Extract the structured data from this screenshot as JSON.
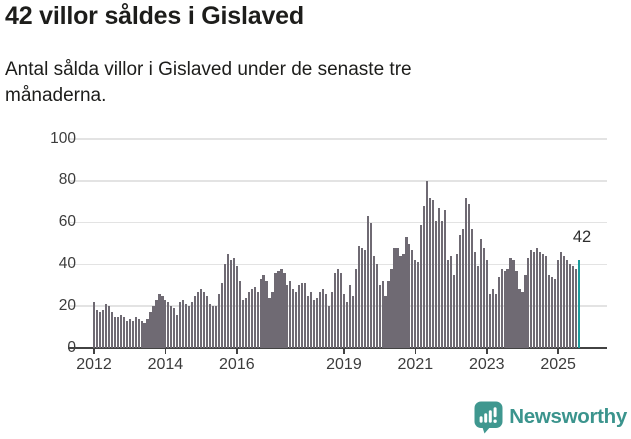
{
  "header": {
    "title": "42 villor såldes i Gislaved",
    "subtitle": "Antal sålda villor i Gislaved under de senaste tre månaderna."
  },
  "chart_data": {
    "type": "bar",
    "title": "42 villor såldes i Gislaved",
    "subtitle": "Antal sålda villor i Gislaved under de senaste tre månaderna.",
    "unit": "villor",
    "x_start_month": "2012-01",
    "x_end_month": "2025-08",
    "values": [
      22,
      18,
      17,
      18,
      21,
      20,
      17,
      15,
      15,
      16,
      15,
      13,
      14,
      13,
      15,
      14,
      13,
      12,
      14,
      17,
      20,
      23,
      26,
      25,
      23,
      22,
      20,
      19,
      16,
      22,
      23,
      21,
      20,
      22,
      25,
      27,
      28,
      27,
      25,
      21,
      20,
      20,
      26,
      31,
      40,
      45,
      42,
      43,
      39,
      32,
      23,
      24,
      27,
      28,
      29,
      27,
      33,
      35,
      32,
      24,
      27,
      36,
      37,
      38,
      36,
      30,
      32,
      28,
      27,
      30,
      31,
      31,
      25,
      27,
      23,
      24,
      27,
      28,
      26,
      20,
      27,
      36,
      38,
      36,
      26,
      22,
      30,
      25,
      38,
      49,
      48,
      47,
      63,
      60,
      44,
      40,
      30,
      32,
      25,
      32,
      38,
      48,
      48,
      44,
      45,
      53,
      50,
      47,
      42,
      41,
      59,
      68,
      80,
      72,
      71,
      61,
      67,
      61,
      66,
      42,
      44,
      35,
      45,
      54,
      57,
      72,
      69,
      57,
      46,
      39,
      52,
      48,
      42,
      26,
      28,
      26,
      34,
      38,
      37,
      38,
      43,
      42,
      37,
      28,
      27,
      35,
      43,
      47,
      46,
      48,
      46,
      45,
      44,
      35,
      34,
      33,
      42,
      46,
      44,
      42,
      40,
      39,
      38,
      42
    ],
    "highlight": {
      "index": 163,
      "value": 42,
      "label": "42"
    },
    "annotation": {
      "text": "42"
    },
    "bar_color": "#6f6a73",
    "highlight_color": "#1a9b9c",
    "ylim": [
      0,
      100
    ],
    "yticks": [
      0,
      20,
      40,
      60,
      80,
      100
    ],
    "xticks": [
      {
        "label": "2012",
        "month_index": 0
      },
      {
        "label": "2014",
        "month_index": 24
      },
      {
        "label": "2016",
        "month_index": 48
      },
      {
        "label": "2019",
        "month_index": 84
      },
      {
        "label": "2021",
        "month_index": 108
      },
      {
        "label": "2023",
        "month_index": 132
      },
      {
        "label": "2025",
        "month_index": 156
      }
    ],
    "grid": true,
    "legend": null,
    "xlabel": "",
    "ylabel": ""
  },
  "footer": {
    "brand": "Newsworthy",
    "brand_color": "#3b948d",
    "icon_color": "#3f978f"
  }
}
